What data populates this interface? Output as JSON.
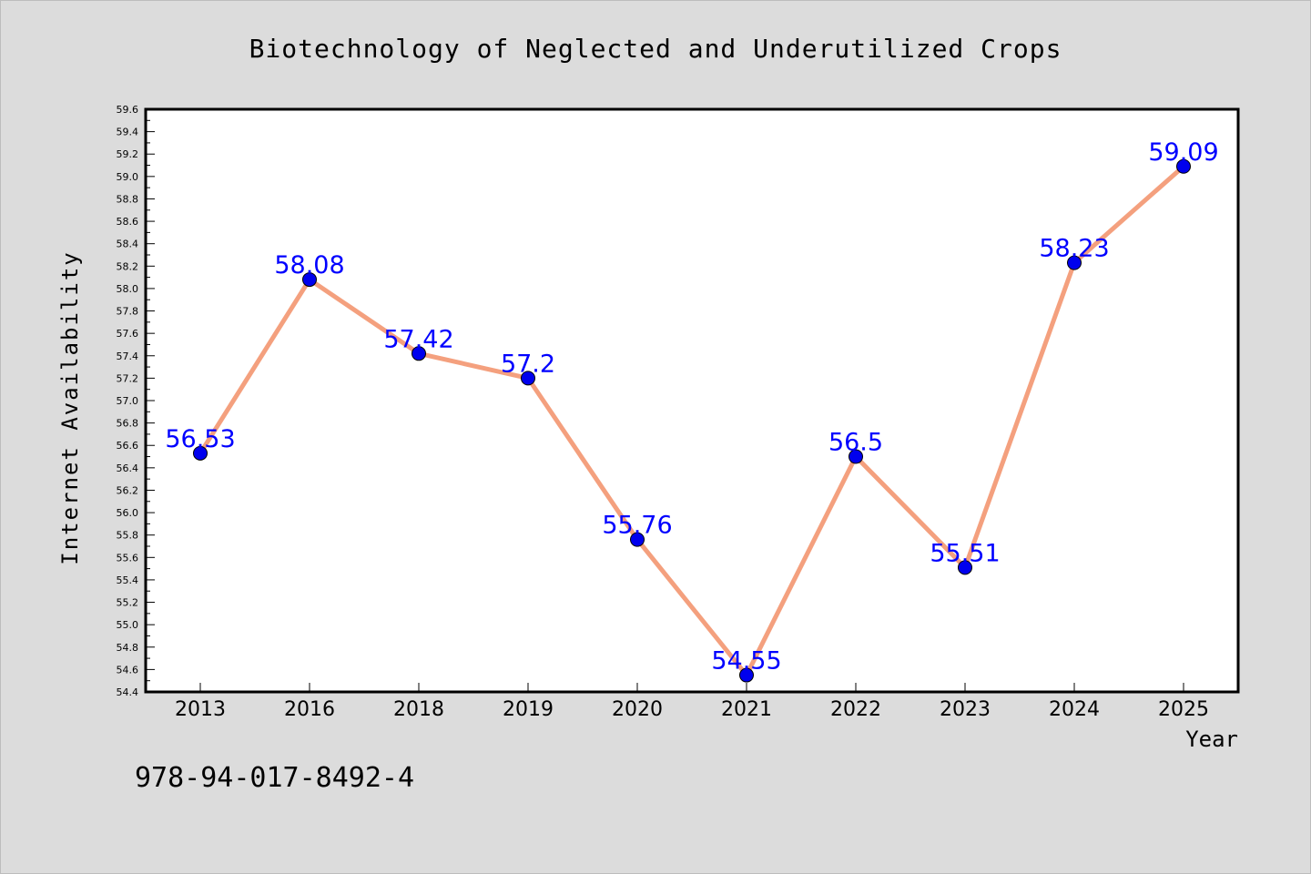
{
  "chart_data": {
    "type": "line",
    "title": "Biotechnology of Neglected and Underutilized Crops",
    "xlabel": "Year",
    "ylabel": "Internet Availability",
    "annotation": "978-94-017-8492-4",
    "categories": [
      "2013",
      "2016",
      "2018",
      "2019",
      "2020",
      "2021",
      "2022",
      "2023",
      "2024",
      "2025"
    ],
    "series": [
      {
        "values": [
          56.53,
          58.08,
          57.42,
          57.2,
          55.76,
          54.55,
          56.5,
          55.51,
          58.23,
          59.09
        ],
        "labels": [
          "56.53",
          "58.08",
          "57.42",
          "57.2",
          "55.76",
          "54.55",
          "56.5",
          "55.51",
          "58.23",
          "59.09"
        ]
      }
    ],
    "ylim": [
      54.4,
      59.6
    ],
    "ytick_step": 0.2,
    "grid": false,
    "colors": {
      "line": "#f4a07e",
      "marker": "#0000ee",
      "label": "#0000ff",
      "background": "#dcdcdc",
      "plot_area": "#ffffff"
    }
  }
}
